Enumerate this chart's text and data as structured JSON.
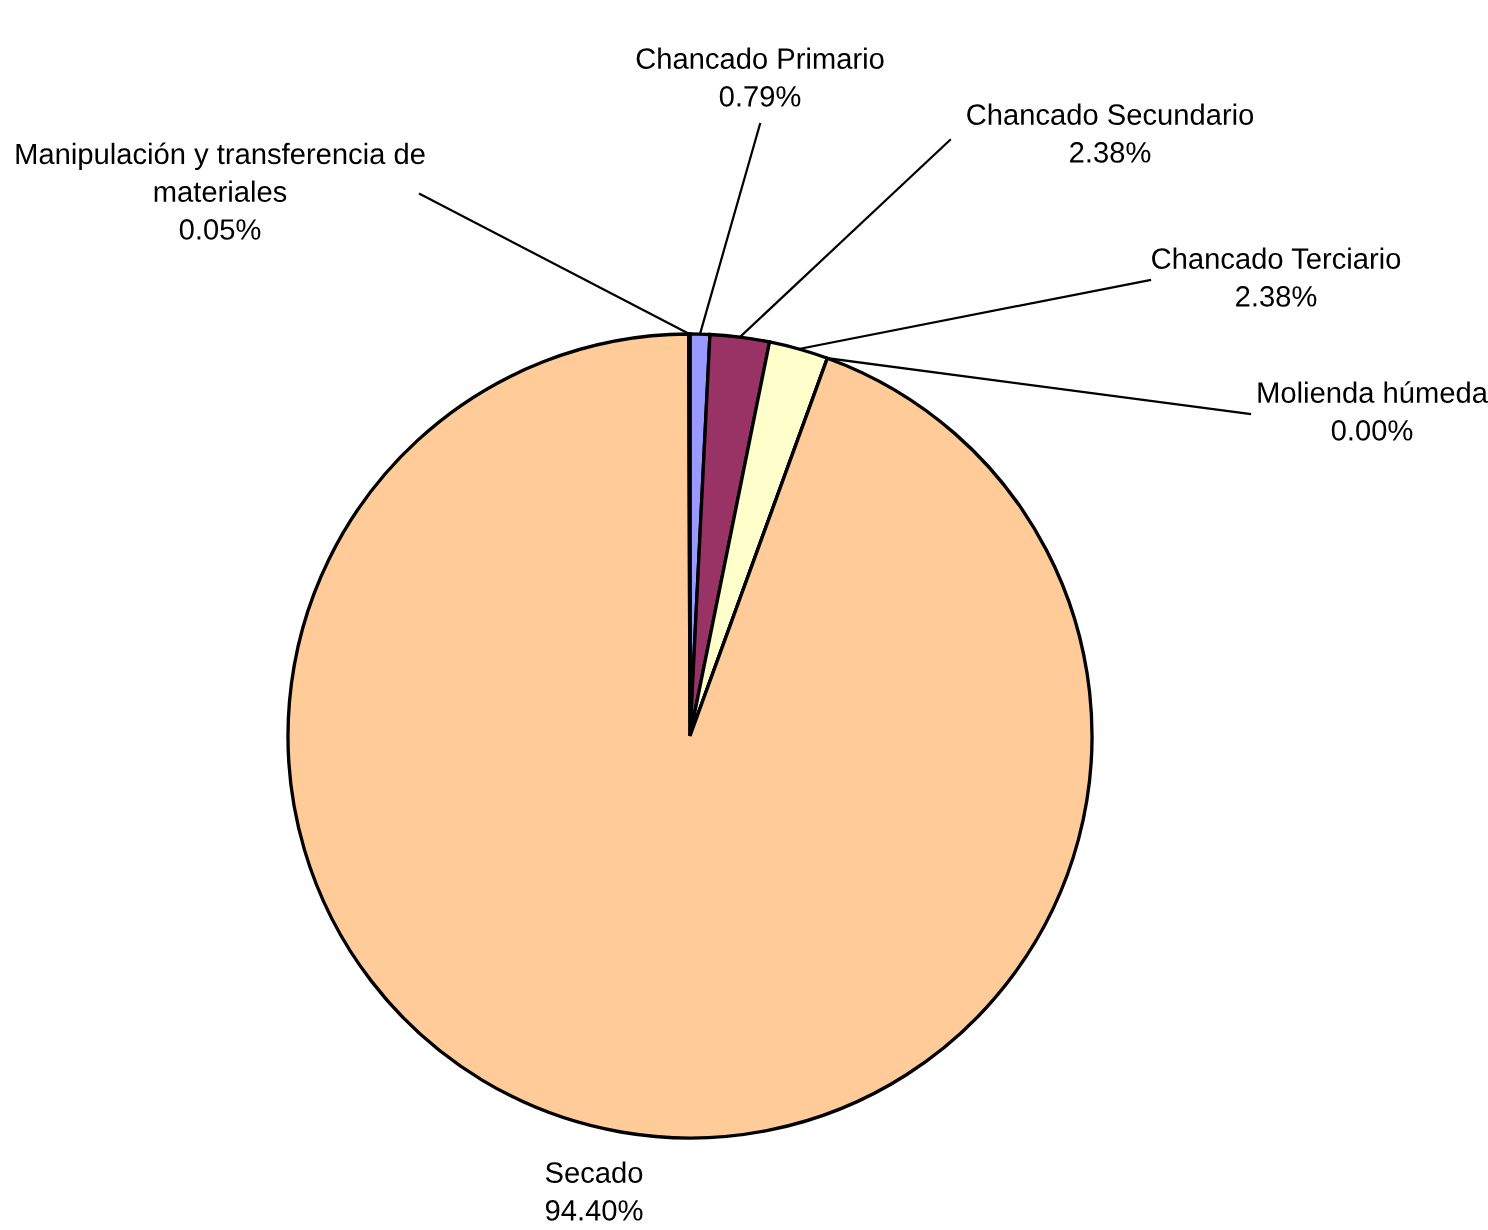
{
  "chart_data": {
    "type": "pie",
    "categories": [
      "Chancado Primario",
      "Chancado Secundario",
      "Chancado Terciario",
      "Molienda húmeda",
      "Secado",
      "Manipulación y transferencia de materiales"
    ],
    "values": [
      0.79,
      2.38,
      2.38,
      0.0,
      94.4,
      0.05
    ],
    "value_labels": [
      "0.79%",
      "2.38%",
      "2.38%",
      "0.00%",
      "94.40%",
      "0.05%"
    ],
    "colors": [
      "#9999ff",
      "#993366",
      "#ffffcc",
      "#ccffff",
      "#ffcc99",
      "#660066"
    ]
  }
}
